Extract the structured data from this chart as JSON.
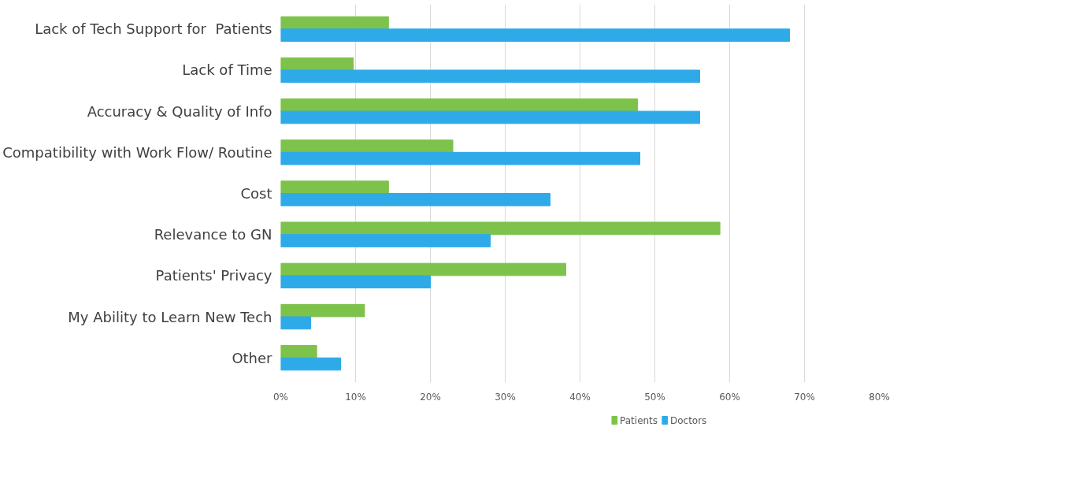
{
  "chart_data": {
    "type": "bar",
    "orientation": "horizontal",
    "categories": [
      "Lack of Tech Support for  Patients",
      "Lack of Time",
      "Accuracy & Quality of Info",
      "Compatibility with Work Flow/ Routine",
      "Cost",
      "Relevance to GN",
      "Patients' Privacy",
      "My Ability to Learn New Tech",
      "Other"
    ],
    "series": [
      {
        "name": "Patients",
        "color": "#7dc24b",
        "values": [
          14.4,
          9.7,
          47.7,
          23,
          14.4,
          58.7,
          38.1,
          11.2,
          4.8
        ]
      },
      {
        "name": "Doctors",
        "color": "#2eaae8",
        "values": [
          68,
          56,
          56,
          48,
          36,
          28,
          20,
          4,
          8
        ]
      }
    ],
    "xlim": [
      0,
      80
    ],
    "xticks": [
      {
        "value": 0,
        "label": "0%"
      },
      {
        "value": 10,
        "label": "10%"
      },
      {
        "value": 20,
        "label": "20%"
      },
      {
        "value": 30,
        "label": "30%"
      },
      {
        "value": 40,
        "label": "40%"
      },
      {
        "value": 50,
        "label": "50%"
      },
      {
        "value": 60,
        "label": "60%"
      },
      {
        "value": 70,
        "label": "70%"
      },
      {
        "value": 80,
        "label": "80%"
      }
    ],
    "grid": "x",
    "legend": "bottom"
  }
}
